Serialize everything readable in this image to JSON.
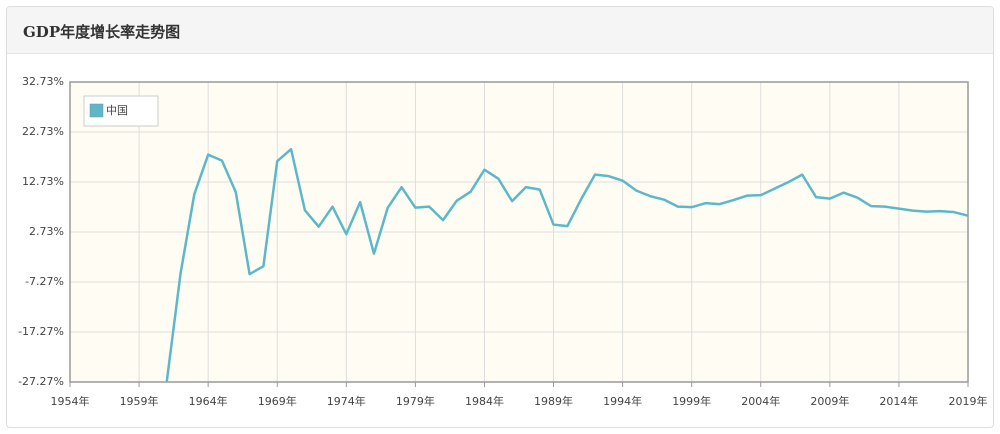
{
  "chart_data": {
    "type": "line",
    "title": "GDP年度增长率走势图",
    "x": [
      1961,
      1962,
      1963,
      1964,
      1965,
      1966,
      1967,
      1968,
      1969,
      1970,
      1971,
      1972,
      1973,
      1974,
      1975,
      1976,
      1977,
      1978,
      1979,
      1980,
      1981,
      1982,
      1983,
      1984,
      1985,
      1986,
      1987,
      1988,
      1989,
      1990,
      1991,
      1992,
      1993,
      1994,
      1995,
      1996,
      1997,
      1998,
      1999,
      2000,
      2001,
      2002,
      2003,
      2004,
      2005,
      2006,
      2007,
      2008,
      2009,
      2010,
      2011,
      2012,
      2013,
      2014,
      2015,
      2016,
      2017,
      2018,
      2019
    ],
    "series": [
      {
        "name": "中国",
        "color": "#5cb8c9",
        "values": [
          -27.3,
          -5.6,
          10.3,
          18.2,
          17.0,
          10.7,
          -5.7,
          -4.1,
          16.9,
          19.3,
          7.1,
          3.8,
          7.8,
          2.3,
          8.7,
          -1.6,
          7.6,
          11.7,
          7.6,
          7.8,
          5.1,
          9.0,
          10.8,
          15.2,
          13.4,
          8.9,
          11.7,
          11.2,
          4.2,
          3.9,
          9.3,
          14.2,
          13.9,
          13.0,
          11.0,
          9.9,
          9.2,
          7.8,
          7.7,
          8.5,
          8.3,
          9.1,
          10.0,
          10.1,
          11.4,
          12.7,
          14.2,
          9.7,
          9.4,
          10.6,
          9.6,
          7.9,
          7.8,
          7.4,
          7.0,
          6.8,
          6.9,
          6.7,
          6.0
        ]
      }
    ],
    "xlim": [
      1954,
      2019
    ],
    "xticks": [
      {
        "value": 1954,
        "label": "1954年"
      },
      {
        "value": 1959,
        "label": "1959年"
      },
      {
        "value": 1964,
        "label": "1964年"
      },
      {
        "value": 1969,
        "label": "1969年"
      },
      {
        "value": 1974,
        "label": "1974年"
      },
      {
        "value": 1979,
        "label": "1979年"
      },
      {
        "value": 1984,
        "label": "1984年"
      },
      {
        "value": 1989,
        "label": "1989年"
      },
      {
        "value": 1994,
        "label": "1994年"
      },
      {
        "value": 1999,
        "label": "1999年"
      },
      {
        "value": 2004,
        "label": "2004年"
      },
      {
        "value": 2009,
        "label": "2009年"
      },
      {
        "value": 2014,
        "label": "2014年"
      },
      {
        "value": 2019,
        "label": "2019年"
      }
    ],
    "ylim": [
      -27.27,
      32.73
    ],
    "yticks": [
      {
        "value": 32.73,
        "label": "32.73%"
      },
      {
        "value": 22.73,
        "label": "22.73%"
      },
      {
        "value": 12.73,
        "label": "12.73%"
      },
      {
        "value": 2.73,
        "label": "2.73%"
      },
      {
        "value": -7.27,
        "label": "-7.27%"
      },
      {
        "value": -17.27,
        "label": "-17.27%"
      },
      {
        "value": -27.27,
        "label": "-27.27%"
      }
    ],
    "grid": true,
    "legend": "top-left"
  }
}
